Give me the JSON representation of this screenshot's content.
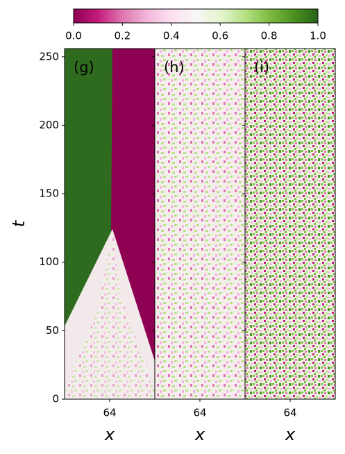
{
  "colorbar": {
    "colormap": "PiYG",
    "lim": [
      0,
      1
    ],
    "ticks": [
      {
        "value": 0,
        "label": "0.0"
      },
      {
        "value": 0.2,
        "label": "0.2"
      },
      {
        "value": 0.4,
        "label": "0.4"
      },
      {
        "value": 0.6,
        "label": "0.6"
      },
      {
        "value": 0.8,
        "label": "0.8"
      },
      {
        "value": 1,
        "label": "1.0"
      }
    ]
  },
  "chart_data": [
    {
      "type": "heatmap",
      "panel_label": "(g)",
      "xlabel": "x",
      "ylabel": "t",
      "xlim": [
        0,
        128
      ],
      "xticks": [
        64
      ],
      "ylim": [
        0,
        256
      ],
      "yticks": [
        0,
        50,
        100,
        150,
        200,
        250
      ]
    },
    {
      "type": "heatmap",
      "panel_label": "(h)",
      "xlabel": "x",
      "xlim": [
        0,
        128
      ],
      "xticks": [
        64
      ],
      "ylim": [
        0,
        256
      ]
    },
    {
      "type": "heatmap",
      "panel_label": "(i)",
      "xlabel": "x",
      "xlim": [
        0,
        128
      ],
      "xticks": [
        64
      ],
      "ylim": [
        0,
        256
      ]
    }
  ]
}
